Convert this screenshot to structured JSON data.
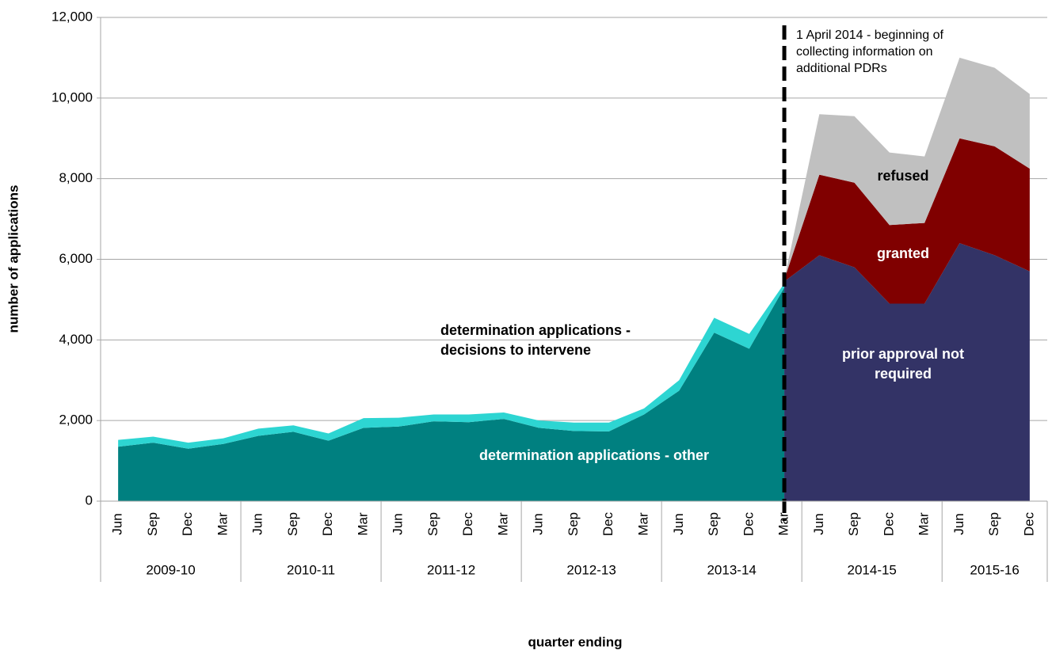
{
  "chart_data": {
    "type": "stacked-area",
    "x_label": "quarter ending",
    "y_label": "number of applications",
    "groups": [
      {
        "label": "2009-10",
        "categories": [
          "Jun",
          "Sep",
          "Dec",
          "Mar"
        ]
      },
      {
        "label": "2010-11",
        "categories": [
          "Jun",
          "Sep",
          "Dec",
          "Mar"
        ]
      },
      {
        "label": "2011-12",
        "categories": [
          "Jun",
          "Sep",
          "Dec",
          "Mar"
        ]
      },
      {
        "label": "2012-13",
        "categories": [
          "Jun",
          "Sep",
          "Dec",
          "Mar"
        ]
      },
      {
        "label": "2013-14",
        "categories": [
          "Jun",
          "Sep",
          "Dec",
          "Mar"
        ]
      },
      {
        "label": "2014-15",
        "categories": [
          "Jun",
          "Sep",
          "Dec",
          "Mar"
        ]
      },
      {
        "label": "2015-16",
        "categories": [
          "Jun",
          "Sep",
          "Dec"
        ]
      }
    ],
    "series": [
      {
        "name": "determination applications - other",
        "color": "#008080",
        "stack": 0,
        "values": [
          1350,
          1450,
          1300,
          1420,
          1620,
          1720,
          1500,
          1820,
          1850,
          1980,
          1960,
          2040,
          1820,
          1740,
          1730,
          2150,
          2740,
          4180,
          3780,
          5300,
          null,
          null,
          null,
          null,
          null,
          null,
          null
        ]
      },
      {
        "name": "determination applications - decisions to intervene",
        "color": "#2dd5d2",
        "stack": 0,
        "values": [
          170,
          150,
          150,
          140,
          180,
          160,
          180,
          240,
          220,
          170,
          190,
          160,
          180,
          210,
          220,
          150,
          260,
          370,
          370,
          100,
          null,
          null,
          null,
          null,
          null,
          null,
          null
        ]
      },
      {
        "name": "prior approval not required",
        "color": "#333366",
        "stack": 1,
        "values": [
          null,
          null,
          null,
          null,
          null,
          null,
          null,
          null,
          null,
          null,
          null,
          null,
          null,
          null,
          null,
          null,
          null,
          null,
          null,
          5450,
          6100,
          5800,
          4900,
          4900,
          6400,
          6100,
          5700
        ]
      },
      {
        "name": "granted",
        "color": "#800000",
        "stack": 1,
        "values": [
          null,
          null,
          null,
          null,
          null,
          null,
          null,
          null,
          null,
          null,
          null,
          null,
          null,
          null,
          null,
          null,
          null,
          null,
          null,
          50,
          2000,
          2100,
          1950,
          2000,
          2600,
          2700,
          2550
        ]
      },
      {
        "name": "refused",
        "color": "#c0c0c0",
        "stack": 1,
        "values": [
          null,
          null,
          null,
          null,
          null,
          null,
          null,
          null,
          null,
          null,
          null,
          null,
          null,
          null,
          null,
          null,
          null,
          null,
          null,
          0,
          1500,
          1650,
          1800,
          1650,
          2000,
          1950,
          1850
        ]
      }
    ],
    "annotation": "1 April 2014 - beginning of collecting information on additional PDRs",
    "ylim": [
      0,
      12000
    ],
    "yticks": [
      0,
      {
        "value": 2000,
        "label": "2,000"
      },
      {
        "value": 4000,
        "label": "4,000"
      },
      {
        "value": 6000,
        "label": "6,000"
      },
      {
        "value": 8000,
        "label": "8,000"
      },
      {
        "value": 10000,
        "label": "10,000"
      },
      {
        "value": 12000,
        "label": "12,000"
      }
    ],
    "grid": true
  }
}
